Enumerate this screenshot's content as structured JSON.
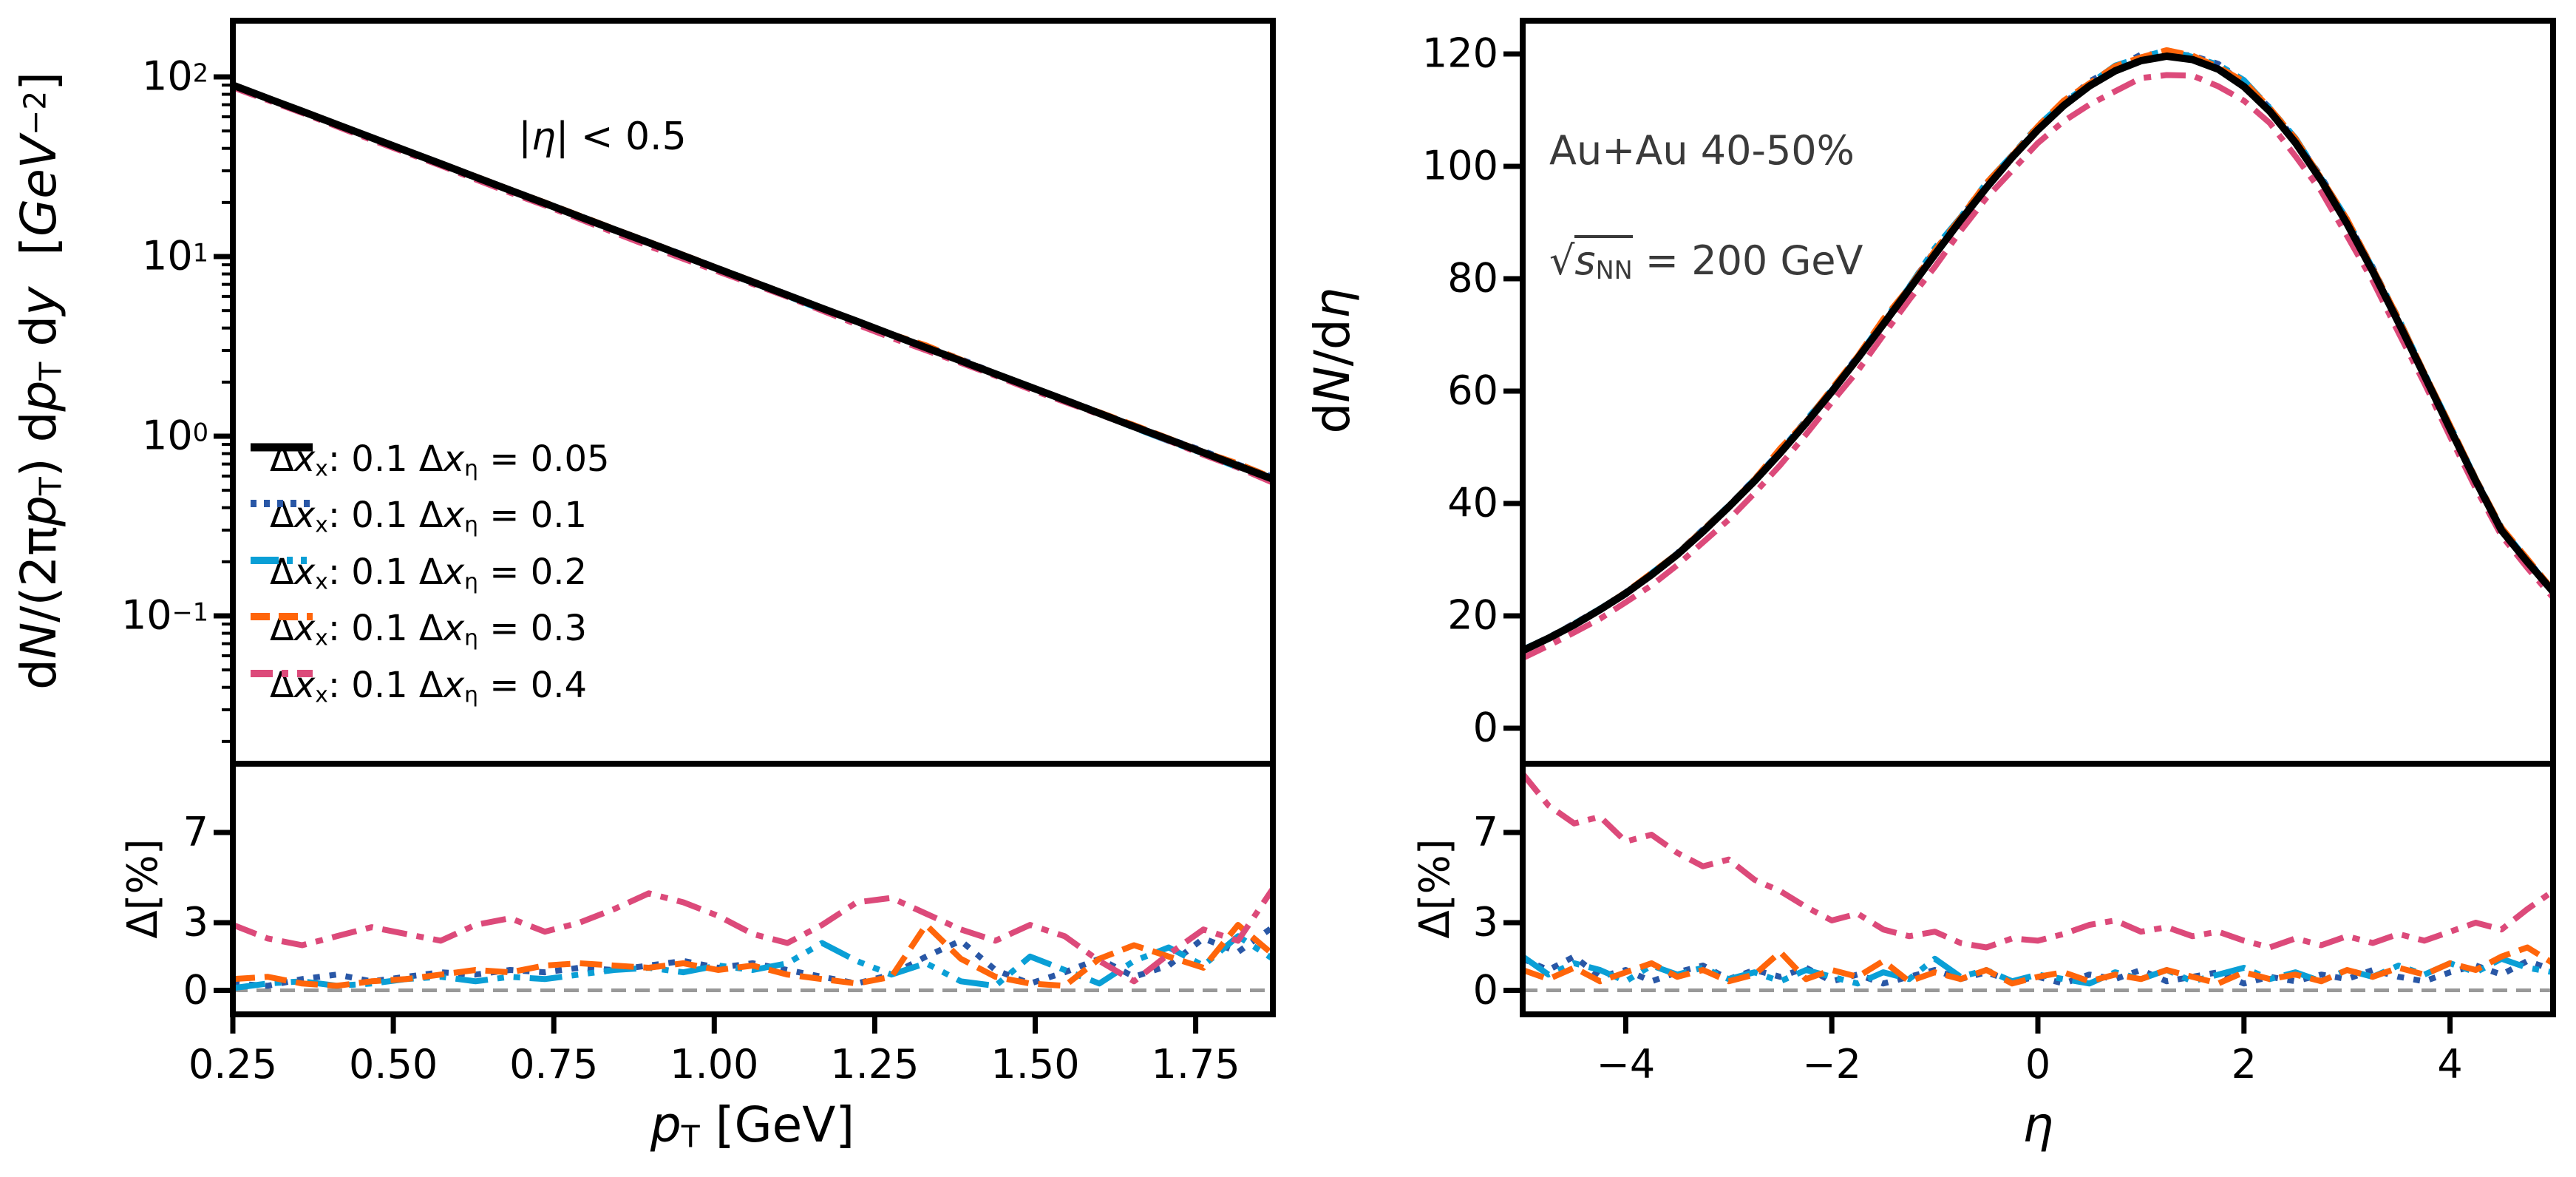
{
  "figure": {
    "left_panel": {
      "annotation_html": "|<i>η</i>| &lt; 0.5",
      "xlabel_html": "<i>p</i><sub>T</sub> [GeV]",
      "ylabel_html": "d<i>N</i>/(2π<i>p</i><sub>T</sub>) d<i>p</i><sub>T</sub> d<i>y</i>&nbsp; [<i>GeV</i><sup>−2</sup>]",
      "ratio_ylabel_html": "Δ[%]"
    },
    "right_panel": {
      "annotation_line1": "Au+Au 40-50%",
      "annotation_line2_html": "√<span class=\"ovl\"><i>s</i><sub>NN</sub></span> = 200 GeV",
      "xlabel_html": "<i>η</i>",
      "ylabel_html": "d<i>N</i>/d<i>η</i>",
      "ratio_ylabel_html": "Δ[%]"
    },
    "colors": {
      "black": "#000000",
      "blue": "#2957a6",
      "cyan": "#0a9fd6",
      "orange": "#ff650a",
      "pink": "#dc4a7a",
      "zero_line_gray": "#999999",
      "annotation_gray": "#3a3a3a"
    }
  },
  "chart_data": [
    {
      "id": "pt_spectrum",
      "type": "line",
      "title": "",
      "annotation": "|η| < 0.5",
      "xlabel": "p_T [GeV]",
      "ylabel": "dN/(2πp_T) dp_T dy [GeV^-2]",
      "yscale": "log",
      "xlim": [
        0.25,
        1.87
      ],
      "ylim": [
        0.015,
        205
      ],
      "grid": false,
      "legend_position": "lower left",
      "x_ticks": [
        0.25,
        0.5,
        0.75,
        1.0,
        1.25,
        1.5,
        1.75
      ],
      "x_tick_labels": [
        "0.25",
        "0.50",
        "0.75",
        "1.00",
        "1.25",
        "1.50",
        "1.75"
      ],
      "y_ticks_log10": [
        2,
        1,
        0,
        -1
      ],
      "y_tick_labels_html": [
        "10<sup>2</sup>",
        "10<sup>1</sup>",
        "10<sup>0</sup>",
        "10<sup>−1</sup>"
      ],
      "x": [
        0.25,
        0.304,
        0.358,
        0.412,
        0.466,
        0.52,
        0.574,
        0.628,
        0.682,
        0.736,
        0.79,
        0.844,
        0.898,
        0.952,
        1.006,
        1.06,
        1.114,
        1.168,
        1.222,
        1.276,
        1.33,
        1.384,
        1.438,
        1.492,
        1.546,
        1.6,
        1.654,
        1.708,
        1.762,
        1.816,
        1.87
      ],
      "base_values": [
        89.9,
        76.0,
        64.3,
        54.3,
        45.9,
        38.8,
        32.8,
        27.7,
        23.4,
        19.8,
        16.7,
        14.1,
        11.95,
        10.1,
        8.53,
        7.21,
        6.1,
        5.15,
        4.36,
        3.68,
        3.11,
        2.63,
        2.22,
        1.88,
        1.59,
        1.34,
        1.13,
        0.958,
        0.81,
        0.684,
        0.578
      ],
      "series": [
        {
          "name": "Δx_x: 0.1 Δx_η = 0.05",
          "label_html": "Δ<i>x</i><sub>x</sub>: 0.1 Δ<i>x</i><sub>η</sub> = 0.05",
          "color": "#000000",
          "linestyle": "solid",
          "offset_sign": 0,
          "ratio_delta_pct": null
        },
        {
          "name": "Δx_x: 0.1 Δx_η = 0.1",
          "label_html": "Δ<i>x</i><sub>x</sub>: 0.1 Δ<i>x</i><sub>η</sub> = 0.1",
          "color": "#2957a6",
          "linestyle": "dotted",
          "offset_sign": 1,
          "ratio_delta_pct": [
            0.3,
            0.2,
            0.5,
            0.7,
            0.4,
            0.6,
            0.8,
            0.7,
            0.9,
            0.8,
            1.0,
            0.9,
            1.1,
            1.3,
            1.0,
            1.2,
            0.9,
            0.6,
            0.3,
            0.7,
            1.5,
            2.2,
            0.9,
            0.3,
            0.8,
            1.4,
            0.6,
            1.1,
            2.3,
            1.7,
            2.8
          ]
        },
        {
          "name": "Δx_x: 0.1 Δx_η = 0.2",
          "label_html": "Δ<i>x</i><sub>x</sub>: 0.1 Δ<i>x</i><sub>η</sub> = 0.2",
          "color": "#0a9fd6",
          "linestyle": "dashdotdot",
          "offset_sign": -1,
          "ratio_delta_pct": [
            0.1,
            0.3,
            0.4,
            0.2,
            0.3,
            0.5,
            0.6,
            0.4,
            0.6,
            0.5,
            0.7,
            0.9,
            1.0,
            0.8,
            1.1,
            0.9,
            1.2,
            2.1,
            1.3,
            0.7,
            1.2,
            0.4,
            0.2,
            1.5,
            0.9,
            0.3,
            1.3,
            1.9,
            1.1,
            2.4,
            1.4
          ]
        },
        {
          "name": "Δx_x: 0.1 Δx_η = 0.3",
          "label_html": "Δ<i>x</i><sub>x</sub>: 0.1 Δ<i>x</i><sub>η</sub> = 0.3",
          "color": "#ff650a",
          "linestyle": "dashed",
          "offset_sign": 1,
          "ratio_delta_pct": [
            0.5,
            0.6,
            0.3,
            0.2,
            0.4,
            0.5,
            0.7,
            0.9,
            0.8,
            1.1,
            1.2,
            1.1,
            1.0,
            1.2,
            0.9,
            1.1,
            0.7,
            0.5,
            0.3,
            0.6,
            2.9,
            1.4,
            0.6,
            0.3,
            0.2,
            1.4,
            2.0,
            1.5,
            1.0,
            2.9,
            1.6
          ]
        },
        {
          "name": "Δx_x: 0.1 Δx_η = 0.4",
          "label_html": "Δ<i>x</i><sub>x</sub>: 0.1 Δ<i>x</i><sub>η</sub> = 0.4",
          "color": "#dc4a7a",
          "linestyle": "dashdot",
          "offset_sign": -1,
          "ratio_delta_pct": [
            2.9,
            2.3,
            2.0,
            2.4,
            2.8,
            2.5,
            2.2,
            2.9,
            3.2,
            2.6,
            3.0,
            3.6,
            4.3,
            3.9,
            3.3,
            2.5,
            2.1,
            2.9,
            3.9,
            4.1,
            3.4,
            2.7,
            2.2,
            2.9,
            2.4,
            1.3,
            0.4,
            1.6,
            2.7,
            2.2,
            4.5
          ]
        }
      ],
      "ratio_panel": {
        "ylabel": "Δ[%]",
        "y_ticks": [
          0,
          3,
          7
        ],
        "y_tick_labels": [
          "0",
          "3",
          "7"
        ],
        "ylim": [
          -1.1,
          10.05
        ],
        "zero_line": 0
      }
    },
    {
      "id": "dndeta",
      "type": "line",
      "title": "",
      "annotations": [
        "Au+Au 40-50%",
        "√s_NN = 200 GeV"
      ],
      "xlabel": "η",
      "ylabel": "dN/dη",
      "yscale": "linear",
      "xlim": [
        -5,
        5
      ],
      "ylim": [
        -6.3,
        125.9
      ],
      "grid": false,
      "x_ticks": [
        -4,
        -2,
        0,
        2,
        4
      ],
      "x_tick_labels": [
        "−4",
        "−2",
        "0",
        "2",
        "4"
      ],
      "y_ticks": [
        0,
        20,
        40,
        60,
        80,
        100,
        120
      ],
      "y_tick_labels": [
        "0",
        "20",
        "40",
        "60",
        "80",
        "100",
        "120"
      ],
      "x": [
        -5,
        -4.75,
        -4.5,
        -4.25,
        -4,
        -3.75,
        -3.5,
        -3.25,
        -3,
        -2.75,
        -2.5,
        -2.25,
        -2,
        -1.75,
        -1.5,
        -1.25,
        -1,
        -0.75,
        -0.5,
        -0.25,
        0,
        0.25,
        0.5,
        0.75,
        1,
        1.25,
        1.5,
        1.75,
        2,
        2.25,
        2.5,
        2.75,
        3,
        3.25,
        3.5,
        3.75,
        4,
        4.25,
        4.5,
        4.75,
        5
      ],
      "base_values": [
        13.8,
        16.0,
        18.4,
        21.1,
        24.0,
        27.3,
        30.9,
        35.0,
        39.4,
        44.0,
        49.0,
        54.3,
        59.9,
        65.8,
        71.9,
        78.1,
        84.3,
        90.4,
        96.2,
        101.6,
        106.5,
        110.8,
        114.3,
        117.0,
        118.8,
        119.6,
        119.0,
        117.3,
        114.2,
        109.8,
        104.2,
        97.5,
        89.8,
        81.3,
        72.2,
        62.8,
        53.3,
        44.0,
        35.2,
        29.6,
        24.3
      ],
      "series": [
        {
          "name": "Δx_x: 0.1 Δx_η = 0.05",
          "color": "#000000",
          "linestyle": "solid",
          "offset_sign": 0,
          "ratio_delta_pct": null
        },
        {
          "name": "Δx_x: 0.1 Δx_η = 0.1",
          "color": "#2957a6",
          "linestyle": "dotted",
          "offset_sign": 1,
          "ratio_delta_pct": [
            1.4,
            0.9,
            1.5,
            0.6,
            0.9,
            0.4,
            0.8,
            1.1,
            0.5,
            0.9,
            0.6,
            1.0,
            0.4,
            0.7,
            0.3,
            0.6,
            0.9,
            0.5,
            0.8,
            0.4,
            0.6,
            0.3,
            0.7,
            0.5,
            0.9,
            0.4,
            0.6,
            0.8,
            0.3,
            0.6,
            0.4,
            0.7,
            0.5,
            0.9,
            0.6,
            0.4,
            0.8,
            1.1,
            0.7,
            1.3,
            0.9
          ]
        },
        {
          "name": "Δx_x: 0.1 Δx_η = 0.2",
          "color": "#0a9fd6",
          "linestyle": "dashdotdot",
          "offset_sign": 1,
          "ratio_delta_pct": [
            1.5,
            0.7,
            1.2,
            0.9,
            0.4,
            1.1,
            0.7,
            1.0,
            0.5,
            0.8,
            0.4,
            0.9,
            0.6,
            0.3,
            0.8,
            0.5,
            1.4,
            0.6,
            0.9,
            0.4,
            0.7,
            0.5,
            0.3,
            0.8,
            0.5,
            0.9,
            0.4,
            0.7,
            1.0,
            0.5,
            0.8,
            0.4,
            0.9,
            0.6,
            1.1,
            0.7,
            1.2,
            0.8,
            1.4,
            1.0,
            0.8
          ]
        },
        {
          "name": "Δx_x: 0.1 Δx_η = 0.3",
          "color": "#ff650a",
          "linestyle": "dashed",
          "offset_sign": 1,
          "ratio_delta_pct": [
            0.9,
            0.5,
            1.0,
            0.4,
            0.8,
            1.2,
            0.6,
            0.9,
            0.4,
            0.7,
            1.7,
            0.5,
            0.9,
            0.6,
            1.3,
            0.4,
            0.8,
            0.5,
            0.9,
            0.3,
            0.6,
            0.8,
            0.4,
            0.7,
            0.5,
            0.9,
            0.6,
            0.3,
            0.8,
            0.5,
            0.7,
            0.4,
            0.9,
            0.6,
            1.0,
            0.7,
            1.2,
            0.9,
            1.5,
            1.9,
            1.2
          ]
        },
        {
          "name": "Δx_x: 0.1 Δx_η = 0.4",
          "color": "#dc4a7a",
          "linestyle": "dashdot",
          "offset_sign": -1,
          "ratio_delta_pct": [
            9.6,
            8.2,
            7.4,
            7.7,
            6.6,
            6.9,
            6.1,
            5.5,
            5.8,
            4.9,
            4.4,
            3.7,
            3.1,
            3.4,
            2.7,
            2.4,
            2.6,
            2.1,
            1.9,
            2.3,
            2.2,
            2.5,
            2.9,
            3.1,
            2.6,
            2.8,
            2.4,
            2.6,
            2.2,
            1.9,
            2.3,
            2.0,
            2.4,
            2.1,
            2.5,
            2.2,
            2.6,
            3.0,
            2.7,
            3.6,
            4.4
          ]
        }
      ],
      "ratio_panel": {
        "ylabel": "Δ[%]",
        "y_ticks": [
          0,
          3,
          7
        ],
        "y_tick_labels": [
          "0",
          "3",
          "7"
        ],
        "ylim": [
          -1.1,
          10.05
        ],
        "zero_line": 0
      }
    }
  ]
}
